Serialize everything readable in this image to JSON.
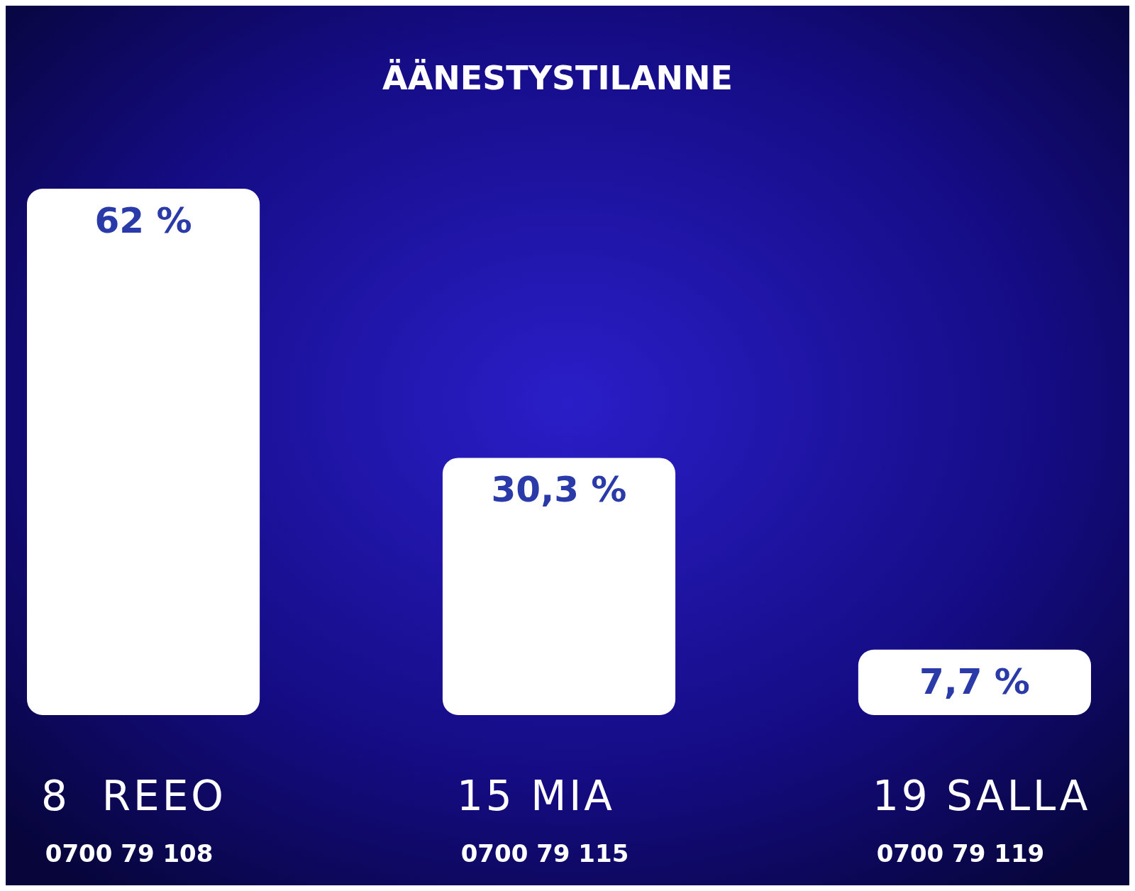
{
  "chart_data": {
    "type": "bar",
    "title": "ÄÄNESTYSTILANNE",
    "categories": [
      "8  REEO",
      "15 MIA",
      "19 SALLA"
    ],
    "values": [
      62,
      30.3,
      7.7
    ],
    "value_labels": [
      "62 %",
      "30,3 %",
      "7,7 %"
    ],
    "color": "#ffffff",
    "annotations": [
      "0700 79 108",
      "0700 79 115",
      "0700 79 119"
    ]
  }
}
